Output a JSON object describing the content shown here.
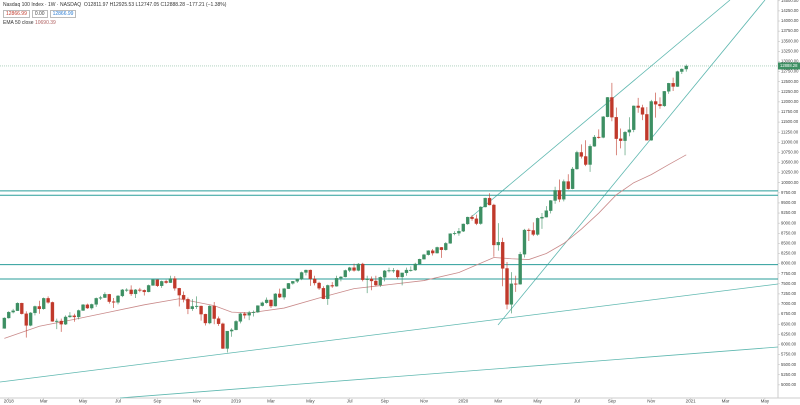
{
  "chart_data": {
    "type": "candlestick",
    "title": "Nasdaq 100 Index · 1W · NASDAQ",
    "legend_text": "O12811.97 H12925.53 L12747.05 C12888.28 −177.21 (−1.38%)",
    "price_boxes": [
      "12866.99",
      "0.00",
      "12866.99"
    ],
    "indicator_label": "EMA 50 close",
    "up_color": "#3d8f63",
    "down_color": "#c0392b",
    "ema_color": "#c98a8a",
    "level_color": "#2a9d9a",
    "grid": false,
    "xlim": [
      -1,
      177
    ],
    "ylim": [
      4700,
      14520
    ],
    "xticks": [
      {
        "value": 1,
        "label": "2018"
      },
      {
        "value": 9,
        "label": "Mar"
      },
      {
        "value": 18,
        "label": "May"
      },
      {
        "value": 26,
        "label": "Jul"
      },
      {
        "value": 35,
        "label": "Sep"
      },
      {
        "value": 44,
        "label": "Nov"
      },
      {
        "value": 53,
        "label": "2019"
      },
      {
        "value": 61,
        "label": "Mar"
      },
      {
        "value": 70,
        "label": "May"
      },
      {
        "value": 79,
        "label": "Jul"
      },
      {
        "value": 87,
        "label": "Sep"
      },
      {
        "value": 96,
        "label": "Nov"
      },
      {
        "value": 105,
        "label": "2020"
      },
      {
        "value": 113,
        "label": "Mar"
      },
      {
        "value": 122,
        "label": "May"
      },
      {
        "value": 131,
        "label": "Jul"
      },
      {
        "value": 139,
        "label": "Sep"
      },
      {
        "value": 148,
        "label": "Nov"
      },
      {
        "value": 157,
        "label": "2021"
      },
      {
        "value": 165,
        "label": "Mar"
      },
      {
        "value": 174,
        "label": "May"
      }
    ],
    "yticks": [
      {
        "value": 5000,
        "label": "5000.00"
      },
      {
        "value": 5250,
        "label": "5250.00"
      },
      {
        "value": 5500,
        "label": "5500.00"
      },
      {
        "value": 5750,
        "label": "5750.00"
      },
      {
        "value": 6000,
        "label": "6000.00"
      },
      {
        "value": 6250,
        "label": "6250.00"
      },
      {
        "value": 6500,
        "label": "6500.00"
      },
      {
        "value": 6750,
        "label": "6750.00"
      },
      {
        "value": 7000,
        "label": "7000.00"
      },
      {
        "value": 7250,
        "label": "7250.00"
      },
      {
        "value": 7500,
        "label": "7500.00"
      },
      {
        "value": 7750,
        "label": "7750.00"
      },
      {
        "value": 8000,
        "label": "8000.00"
      },
      {
        "value": 8250,
        "label": "8250.00"
      },
      {
        "value": 8500,
        "label": "8500.00"
      },
      {
        "value": 8750,
        "label": "8750.00"
      },
      {
        "value": 9000,
        "label": "9000.00"
      },
      {
        "value": 9250,
        "label": "9250.00"
      },
      {
        "value": 9500,
        "label": "9500.00"
      },
      {
        "value": 9750,
        "label": "9750.00"
      },
      {
        "value": 10000,
        "label": "10000.00"
      },
      {
        "value": 10250,
        "label": "10250.00"
      },
      {
        "value": 10500,
        "label": "10500.00"
      },
      {
        "value": 10750,
        "label": "10750.00"
      },
      {
        "value": 11000,
        "label": "11000.00"
      },
      {
        "value": 11250,
        "label": "11250.00"
      },
      {
        "value": 11500,
        "label": "11500.00"
      },
      {
        "value": 11750,
        "label": "11750.00"
      },
      {
        "value": 12000,
        "label": "12000.00"
      },
      {
        "value": 12250,
        "label": "12250.00"
      },
      {
        "value": 12500,
        "label": "12500.00"
      },
      {
        "value": 12750,
        "label": "12750.00"
      },
      {
        "value": 13000,
        "label": "13000.00"
      },
      {
        "value": 13250,
        "label": "13250.00"
      },
      {
        "value": 13500,
        "label": "13500.00"
      },
      {
        "value": 13750,
        "label": "13750.00"
      },
      {
        "value": 14000,
        "label": "14000.00"
      },
      {
        "value": 14250,
        "label": "14250.00"
      },
      {
        "value": 14500,
        "label": "14500.00"
      }
    ],
    "levels": [
      9800,
      9690,
      7975,
      7620
    ],
    "ema": {
      "x": [
        0,
        8,
        16,
        24,
        32,
        40,
        48,
        52,
        56,
        64,
        72,
        80,
        88,
        96,
        104,
        112,
        116,
        120,
        124,
        128,
        132,
        136,
        140,
        144,
        148,
        152,
        156
      ],
      "values": [
        6150,
        6450,
        6620,
        6800,
        6980,
        7130,
        6960,
        6800,
        6780,
        6900,
        7150,
        7380,
        7480,
        7580,
        7780,
        8150,
        8120,
        8100,
        8250,
        8500,
        8850,
        9250,
        9700,
        10000,
        10200,
        10450,
        10690.39
      ]
    },
    "candles": [
      [
        6396,
        6670,
        6390,
        6654
      ],
      [
        6654,
        6820,
        6640,
        6800
      ],
      [
        6800,
        6880,
        6770,
        6834
      ],
      [
        6834,
        7040,
        6830,
        7022
      ],
      [
        7022,
        7030,
        6740,
        6760
      ],
      [
        6760,
        6820,
        6170,
        6470
      ],
      [
        6470,
        6800,
        6450,
        6780
      ],
      [
        6780,
        6960,
        6720,
        6940
      ],
      [
        6940,
        7080,
        6760,
        6880
      ],
      [
        6880,
        7160,
        6860,
        7140
      ],
      [
        7140,
        7190,
        7010,
        7040
      ],
      [
        7040,
        7060,
        6560,
        6570
      ],
      [
        6570,
        6640,
        6380,
        6580
      ],
      [
        6580,
        6640,
        6310,
        6500
      ],
      [
        6500,
        6720,
        6480,
        6680
      ],
      [
        6680,
        6800,
        6660,
        6710
      ],
      [
        6710,
        6760,
        6560,
        6680
      ],
      [
        6680,
        6860,
        6620,
        6840
      ],
      [
        6840,
        7000,
        6830,
        6980
      ],
      [
        6980,
        7010,
        6880,
        6900
      ],
      [
        6900,
        7010,
        6860,
        6990
      ],
      [
        6990,
        7160,
        6930,
        7140
      ],
      [
        7140,
        7200,
        7100,
        7160
      ],
      [
        7160,
        7290,
        7150,
        7240
      ],
      [
        7240,
        7250,
        7010,
        7060
      ],
      [
        7060,
        7150,
        6900,
        7040
      ],
      [
        7040,
        7220,
        6990,
        7200
      ],
      [
        7200,
        7370,
        7170,
        7350
      ],
      [
        7350,
        7390,
        7300,
        7350
      ],
      [
        7350,
        7460,
        7200,
        7250
      ],
      [
        7250,
        7370,
        7150,
        7350
      ],
      [
        7350,
        7400,
        7290,
        7340
      ],
      [
        7340,
        7360,
        7210,
        7300
      ],
      [
        7300,
        7480,
        7290,
        7460
      ],
      [
        7460,
        7620,
        7450,
        7600
      ],
      [
        7600,
        7610,
        7420,
        7450
      ],
      [
        7450,
        7580,
        7400,
        7560
      ],
      [
        7560,
        7600,
        7500,
        7530
      ],
      [
        7530,
        7700,
        7520,
        7630
      ],
      [
        7630,
        7690,
        7330,
        7390
      ],
      [
        7390,
        7400,
        6940,
        7220
      ],
      [
        7220,
        7310,
        7040,
        7120
      ],
      [
        7120,
        7160,
        6750,
        6880
      ],
      [
        6880,
        7120,
        6830,
        6940
      ],
      [
        6940,
        7190,
        6880,
        6950
      ],
      [
        6950,
        6960,
        6590,
        6750
      ],
      [
        6750,
        6760,
        6470,
        6530
      ],
      [
        6530,
        6970,
        6500,
        6950
      ],
      [
        6950,
        7050,
        6500,
        6640
      ],
      [
        6640,
        6690,
        6460,
        6510
      ],
      [
        6510,
        6540,
        5890,
        5900
      ],
      [
        5900,
        6330,
        5800,
        6330
      ],
      [
        6330,
        6400,
        6190,
        6360
      ],
      [
        6360,
        6600,
        6350,
        6570
      ],
      [
        6570,
        6780,
        6520,
        6760
      ],
      [
        6760,
        6800,
        6640,
        6720
      ],
      [
        6720,
        6830,
        6600,
        6790
      ],
      [
        6790,
        6840,
        6690,
        6800
      ],
      [
        6800,
        6970,
        6780,
        6960
      ],
      [
        6960,
        7060,
        6940,
        7030
      ],
      [
        7030,
        7160,
        7010,
        7100
      ],
      [
        7100,
        7110,
        6900,
        6950
      ],
      [
        6950,
        7270,
        6940,
        7250
      ],
      [
        7250,
        7380,
        7150,
        7170
      ],
      [
        7170,
        7400,
        7110,
        7380
      ],
      [
        7380,
        7520,
        7370,
        7510
      ],
      [
        7510,
        7570,
        7480,
        7560
      ],
      [
        7560,
        7630,
        7520,
        7620
      ],
      [
        7620,
        7800,
        7590,
        7780
      ],
      [
        7780,
        7850,
        7710,
        7840
      ],
      [
        7840,
        7850,
        7450,
        7620
      ],
      [
        7620,
        7700,
        7460,
        7520
      ],
      [
        7520,
        7550,
        7350,
        7390
      ],
      [
        7390,
        7440,
        7120,
        7130
      ],
      [
        7130,
        7480,
        6980,
        7460
      ],
      [
        7460,
        7540,
        7400,
        7440
      ],
      [
        7440,
        7700,
        7430,
        7640
      ],
      [
        7640,
        7690,
        7560,
        7670
      ],
      [
        7670,
        7850,
        7660,
        7830
      ],
      [
        7830,
        7920,
        7790,
        7900
      ],
      [
        7900,
        8000,
        7800,
        7830
      ],
      [
        7830,
        8010,
        7810,
        7990
      ],
      [
        7990,
        8020,
        7560,
        7600
      ],
      [
        7600,
        7700,
        7270,
        7620
      ],
      [
        7620,
        7680,
        7340,
        7570
      ],
      [
        7570,
        7700,
        7440,
        7470
      ],
      [
        7470,
        7680,
        7420,
        7660
      ],
      [
        7660,
        7840,
        7560,
        7820
      ],
      [
        7820,
        7900,
        7780,
        7830
      ],
      [
        7830,
        7890,
        7770,
        7830
      ],
      [
        7830,
        7850,
        7620,
        7670
      ],
      [
        7670,
        7760,
        7460,
        7770
      ],
      [
        7770,
        7900,
        7700,
        7840
      ],
      [
        7840,
        7930,
        7800,
        7840
      ],
      [
        7840,
        8020,
        7820,
        7990
      ],
      [
        7990,
        8120,
        7980,
        8110
      ],
      [
        8110,
        8240,
        8100,
        8220
      ],
      [
        8220,
        8330,
        8200,
        8320
      ],
      [
        8320,
        8360,
        8200,
        8260
      ],
      [
        8260,
        8420,
        8250,
        8400
      ],
      [
        8400,
        8410,
        8140,
        8340
      ],
      [
        8340,
        8530,
        8320,
        8500
      ],
      [
        8500,
        8750,
        8490,
        8740
      ],
      [
        8740,
        8800,
        8700,
        8750
      ],
      [
        8750,
        8880,
        8690,
        8800
      ],
      [
        8800,
        8990,
        8780,
        8980
      ],
      [
        8980,
        9160,
        8960,
        9150
      ],
      [
        9150,
        9200,
        9060,
        9110
      ],
      [
        9110,
        9210,
        8950,
        8990
      ],
      [
        8990,
        9420,
        8960,
        9400
      ],
      [
        9400,
        9630,
        9390,
        9620
      ],
      [
        9620,
        9740,
        9440,
        9450
      ],
      [
        9450,
        9480,
        8170,
        8460
      ],
      [
        8460,
        9000,
        8320,
        8530
      ],
      [
        8530,
        8640,
        7440,
        7880
      ],
      [
        7880,
        8040,
        6870,
        6990
      ],
      [
        6990,
        7790,
        6770,
        7500
      ],
      [
        7500,
        7700,
        7300,
        7490
      ],
      [
        7490,
        8290,
        7480,
        8230
      ],
      [
        8230,
        8860,
        8150,
        8830
      ],
      [
        8830,
        8870,
        8560,
        8820
      ],
      [
        8820,
        9020,
        8680,
        8720
      ],
      [
        8720,
        9140,
        8690,
        9120
      ],
      [
        9120,
        9250,
        8860,
        9150
      ],
      [
        9150,
        9420,
        9140,
        9310
      ],
      [
        9310,
        9570,
        9240,
        9560
      ],
      [
        9560,
        9900,
        9480,
        9810
      ],
      [
        9810,
        10080,
        9520,
        9590
      ],
      [
        9590,
        10080,
        9540,
        10030
      ],
      [
        10030,
        10210,
        9830,
        9850
      ],
      [
        9850,
        10390,
        9840,
        10340
      ],
      [
        10340,
        10790,
        10320,
        10750
      ],
      [
        10750,
        10950,
        10600,
        10650
      ],
      [
        10650,
        11050,
        10410,
        10450
      ],
      [
        10450,
        10950,
        10270,
        10900
      ],
      [
        10900,
        11180,
        10890,
        11130
      ],
      [
        11130,
        11320,
        11090,
        11120
      ],
      [
        11120,
        11650,
        11100,
        11630
      ],
      [
        11630,
        12120,
        11620,
        12110
      ],
      [
        12110,
        12470,
        11520,
        11620
      ],
      [
        11620,
        11860,
        10680,
        11090
      ],
      [
        11090,
        11340,
        10850,
        11040
      ],
      [
        11040,
        11280,
        10680,
        11250
      ],
      [
        11250,
        11620,
        11150,
        11310
      ],
      [
        11310,
        11910,
        11250,
        11900
      ],
      [
        11900,
        12100,
        11730,
        11860
      ],
      [
        11860,
        11930,
        11550,
        11690
      ],
      [
        11690,
        11870,
        11050,
        11050
      ],
      [
        11050,
        12050,
        11040,
        12010
      ],
      [
        12010,
        12230,
        11610,
        11940
      ],
      [
        11940,
        12110,
        11830,
        11900
      ],
      [
        11900,
        12270,
        11880,
        12260
      ],
      [
        12260,
        12470,
        12200,
        12460
      ],
      [
        12460,
        12600,
        12270,
        12380
      ],
      [
        12380,
        12770,
        12370,
        12750
      ],
      [
        12750,
        12830,
        12690,
        12811.97
      ],
      [
        12811.97,
        12925.53,
        12747.05,
        12888.28
      ]
    ]
  }
}
